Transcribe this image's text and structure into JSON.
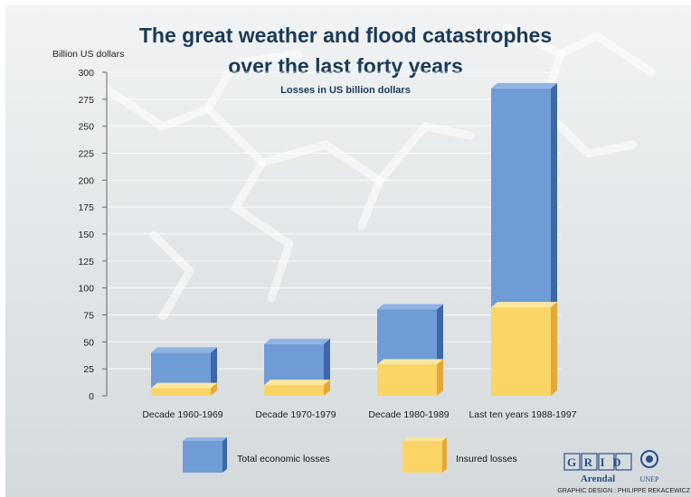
{
  "chart_data": {
    "type": "bar",
    "title": "The great weather and flood catastrophes over the last forty years",
    "title_lines": [
      "The great weather and flood catastrophes",
      "over the last forty years"
    ],
    "subtitle": "Losses in US billion dollars",
    "ylabel": "Billion US dollars",
    "xlabel": "",
    "ylim": [
      0,
      300
    ],
    "yticks": [
      0,
      25,
      50,
      75,
      100,
      125,
      150,
      175,
      200,
      225,
      250,
      275,
      300
    ],
    "categories": [
      "Decade 1960-1969",
      "Decade 1970-1979",
      "Decade 1980-1989",
      "Last ten years 1988-1997"
    ],
    "series": [
      {
        "name": "Total economic losses",
        "values": [
          40,
          48,
          80,
          285
        ],
        "color": "#6f9bd6"
      },
      {
        "name": "Insured losses",
        "values": [
          7,
          10,
          29,
          82
        ],
        "color": "#fbd466"
      }
    ],
    "legend": {
      "placement": "bottom",
      "items": [
        "Total economic losses",
        "Insured losses"
      ]
    },
    "grid": true
  },
  "credits": {
    "logo_text": "GRID",
    "logo_sub": "Arendal",
    "unep": "UNEP",
    "design": "GRAPHIC DESIGN : PHILIPPE REKACEWICZ"
  },
  "colors": {
    "background_top": "#f1f3f4",
    "background_bottom": "#d4d9dc",
    "total_front": "#6f9bd6",
    "total_side": "#3e67a8",
    "total_top": "#8fb3e4",
    "insured_front": "#fbd466",
    "insured_side": "#e3a936",
    "insured_top": "#fde79b",
    "title": "#1b3a57"
  }
}
